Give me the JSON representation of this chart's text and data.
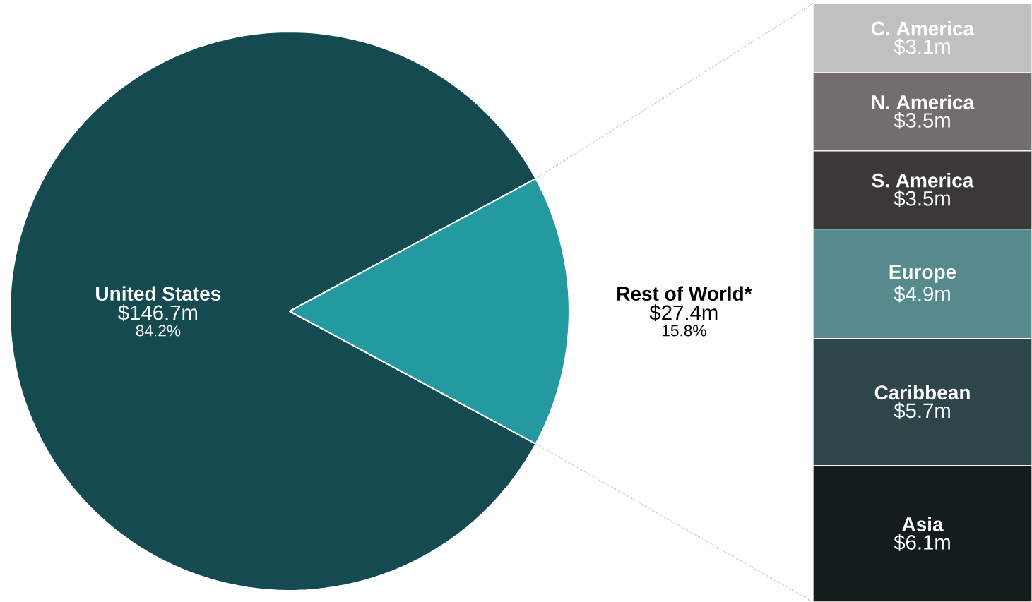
{
  "chart_data": [
    {
      "type": "pie",
      "categories": [
        "United States",
        "Rest of World*"
      ],
      "values": [
        146.7,
        27.4
      ],
      "colors": [
        "#154a50",
        "#2399a0"
      ],
      "value_labels": [
        "$146.7m",
        "$27.4m"
      ],
      "annotations": [
        "84.2%",
        "15.8%"
      ]
    },
    {
      "type": "bar",
      "stacked": true,
      "categories": [
        null
      ],
      "series": [
        {
          "name": "Asia",
          "color": "#141c1d",
          "values": [
            6.1
          ],
          "value_labels": [
            "$6.1m"
          ]
        },
        {
          "name": "Caribbean",
          "color": "#2e464a",
          "values": [
            5.7
          ],
          "value_labels": [
            "$5.7m"
          ]
        },
        {
          "name": "Europe",
          "color": "#578a8d",
          "values": [
            4.9
          ],
          "value_labels": [
            "$4.9m"
          ]
        },
        {
          "name": "S. America",
          "color": "#3b3938",
          "values": [
            3.5
          ],
          "value_labels": [
            "$3.5m"
          ]
        },
        {
          "name": "N. America",
          "color": "#736d6b",
          "values": [
            3.5
          ],
          "value_labels": [
            "$3.5m"
          ]
        },
        {
          "name": "C. America",
          "color": "#c0c0c0",
          "values": [
            3.1
          ],
          "value_labels": [
            "$3.1m"
          ]
        }
      ]
    }
  ]
}
